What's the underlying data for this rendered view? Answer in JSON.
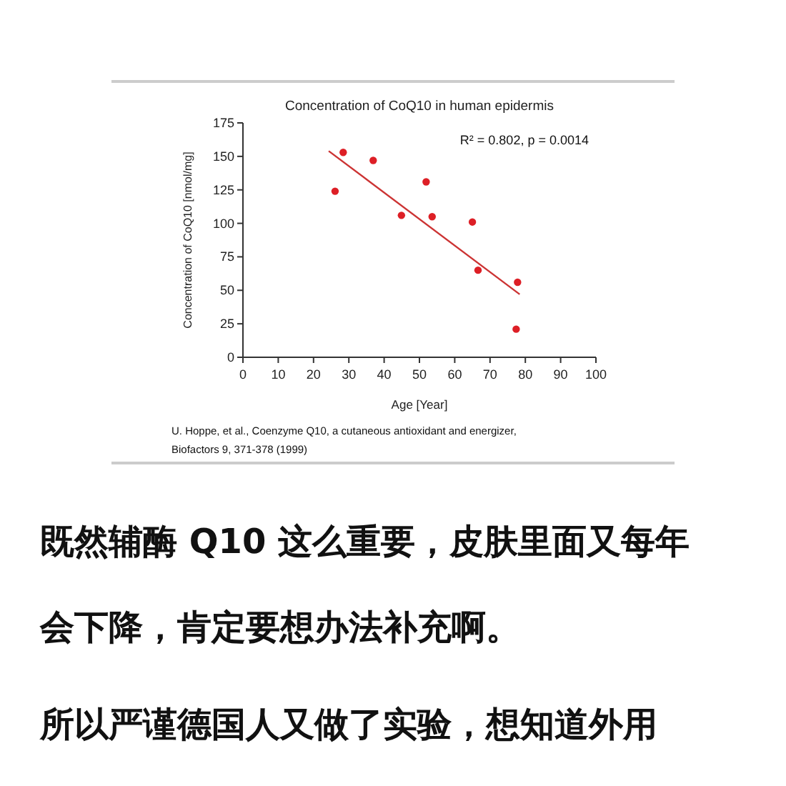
{
  "chart_data": {
    "type": "scatter",
    "title": "Concentration of CoQ10 in human epidermis",
    "xlabel": "Age [Year]",
    "ylabel": "Concentration of CoQ10 [nmol/mg]",
    "xlim": [
      0,
      100
    ],
    "ylim": [
      0,
      175
    ],
    "xticks": [
      0,
      10,
      20,
      30,
      40,
      50,
      60,
      70,
      80,
      90,
      100
    ],
    "yticks": [
      0,
      25,
      50,
      75,
      100,
      125,
      150,
      175
    ],
    "grid": false,
    "series": [
      {
        "marker": "circle",
        "color": "#dd1f26",
        "x": [
          26.1,
          28.4,
          36.9,
          44.9,
          51.9,
          53.6,
          65.0,
          66.6,
          77.8,
          77.4
        ],
        "values": [
          124,
          153,
          147,
          106,
          131,
          105,
          101,
          65,
          56,
          21
        ]
      },
      {
        "type": "line",
        "color": "#cc3333",
        "x": [
          24.3,
          78.4
        ],
        "values": [
          154,
          47
        ]
      }
    ],
    "annotations": [
      "R² = 0.802,  p = 0.0014",
      "U. Hoppe, et al., Coenzyme Q10, a cutaneous antioxidant and energizer,",
      "Biofactors 9, 371-378 (1999)",
      "既然辅酶 Q10 这么重要，皮肤里面又每年",
      "会下降，肯定要想办法补充啊。",
      "所以严谨德国人又做了实验，想知道外用"
    ]
  }
}
